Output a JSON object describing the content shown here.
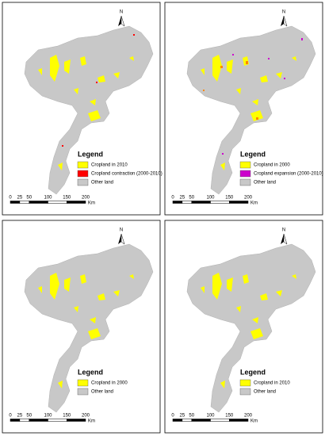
{
  "panels": [
    {
      "north": "N",
      "legend_title": "Legend",
      "items": [
        {
          "label": "Cropland in 2010",
          "color": "#ffff00"
        },
        {
          "label": "Cropland contraction (2000-2010)",
          "color": "#ff0000"
        },
        {
          "label": "Other land",
          "color": "#c8c8c8"
        }
      ],
      "scale": [
        "0",
        "25",
        "50",
        "100",
        "150",
        "200"
      ],
      "scale_unit": "Km"
    },
    {
      "north": "N",
      "legend_title": "Legend",
      "items": [
        {
          "label": "Cropland in 2000",
          "color": "#ffff00"
        },
        {
          "label": "Cropland expansion (2000-2010)",
          "color": "#cc00cc"
        },
        {
          "label": "Other land",
          "color": "#c8c8c8"
        }
      ],
      "scale": [
        "0",
        "25",
        "50",
        "100",
        "150",
        "200"
      ],
      "scale_unit": "Km"
    },
    {
      "north": "N",
      "legend_title": "Legend",
      "items": [
        {
          "label": "Cropland in 2000",
          "color": "#ffff00"
        },
        {
          "label": "Other land",
          "color": "#c8c8c8"
        }
      ],
      "scale": [
        "0",
        "25",
        "50",
        "100",
        "150",
        "200"
      ],
      "scale_unit": "Km"
    },
    {
      "north": "N",
      "legend_title": "Legend",
      "items": [
        {
          "label": "Cropland in 2010",
          "color": "#ffff00"
        },
        {
          "label": "Other land",
          "color": "#c8c8c8"
        }
      ],
      "scale": [
        "0",
        "25",
        "50",
        "100",
        "150",
        "200"
      ],
      "scale_unit": "Km"
    }
  ]
}
